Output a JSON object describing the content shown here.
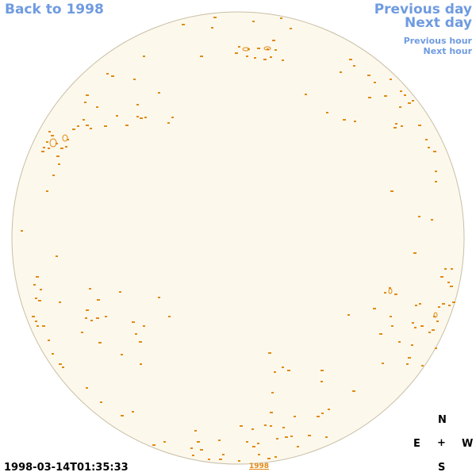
{
  "nav": {
    "back": "Back to 1998",
    "previous_day": "Previous day",
    "next_day": "Next day",
    "previous_hour": "Previous hour",
    "next_hour": "Next hour"
  },
  "timestamp": "1998-03-14T01:35:33",
  "year_link": "1998",
  "compass": {
    "north": "N",
    "east": "E",
    "center": "+",
    "west": "W",
    "south": "S"
  },
  "colors": {
    "disk_fill": "#fdf8ec",
    "disk_edge": "#c8bfa6",
    "feature": "#e08a14",
    "link": "#6f9be0"
  }
}
